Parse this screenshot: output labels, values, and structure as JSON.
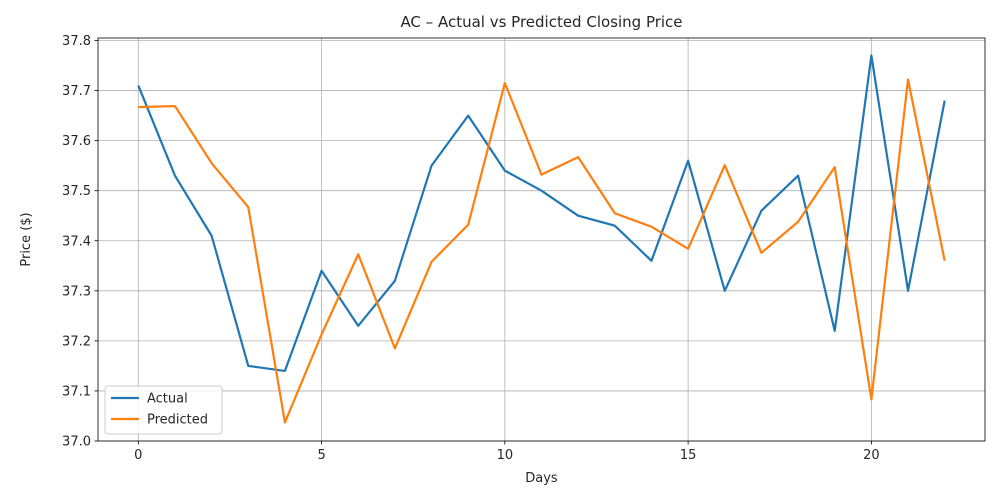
{
  "chart_data": {
    "type": "line",
    "title": "AC – Actual vs Predicted Closing Price",
    "xlabel": "Days",
    "ylabel": "Price ($)",
    "xlim": [
      -1.1,
      23.1
    ],
    "ylim": [
      37.0,
      37.805
    ],
    "xticks": [
      0,
      5,
      10,
      15,
      20
    ],
    "yticks": [
      37.0,
      37.1,
      37.2,
      37.3,
      37.4,
      37.5,
      37.6,
      37.7,
      37.8
    ],
    "grid": true,
    "legend_position": "bottom-left",
    "x": [
      0,
      1,
      2,
      3,
      4,
      5,
      6,
      7,
      8,
      9,
      10,
      11,
      12,
      13,
      14,
      15,
      16,
      17,
      18,
      19,
      20,
      21,
      22
    ],
    "series": [
      {
        "name": "Actual",
        "color": "#1f77b4",
        "values": [
          37.71,
          37.53,
          37.41,
          37.15,
          37.14,
          37.34,
          37.23,
          37.32,
          37.55,
          37.65,
          37.54,
          37.5,
          37.45,
          37.43,
          37.36,
          37.56,
          37.3,
          37.46,
          37.53,
          37.22,
          37.77,
          37.3,
          37.68
        ]
      },
      {
        "name": "Predicted",
        "color": "#ff7f0e",
        "values": [
          37.667,
          37.669,
          37.555,
          37.467,
          37.037,
          37.213,
          37.373,
          37.185,
          37.358,
          37.432,
          37.715,
          37.532,
          37.567,
          37.455,
          37.428,
          37.384,
          37.551,
          37.376,
          37.438,
          37.547,
          37.083,
          37.722,
          37.36
        ]
      }
    ]
  }
}
